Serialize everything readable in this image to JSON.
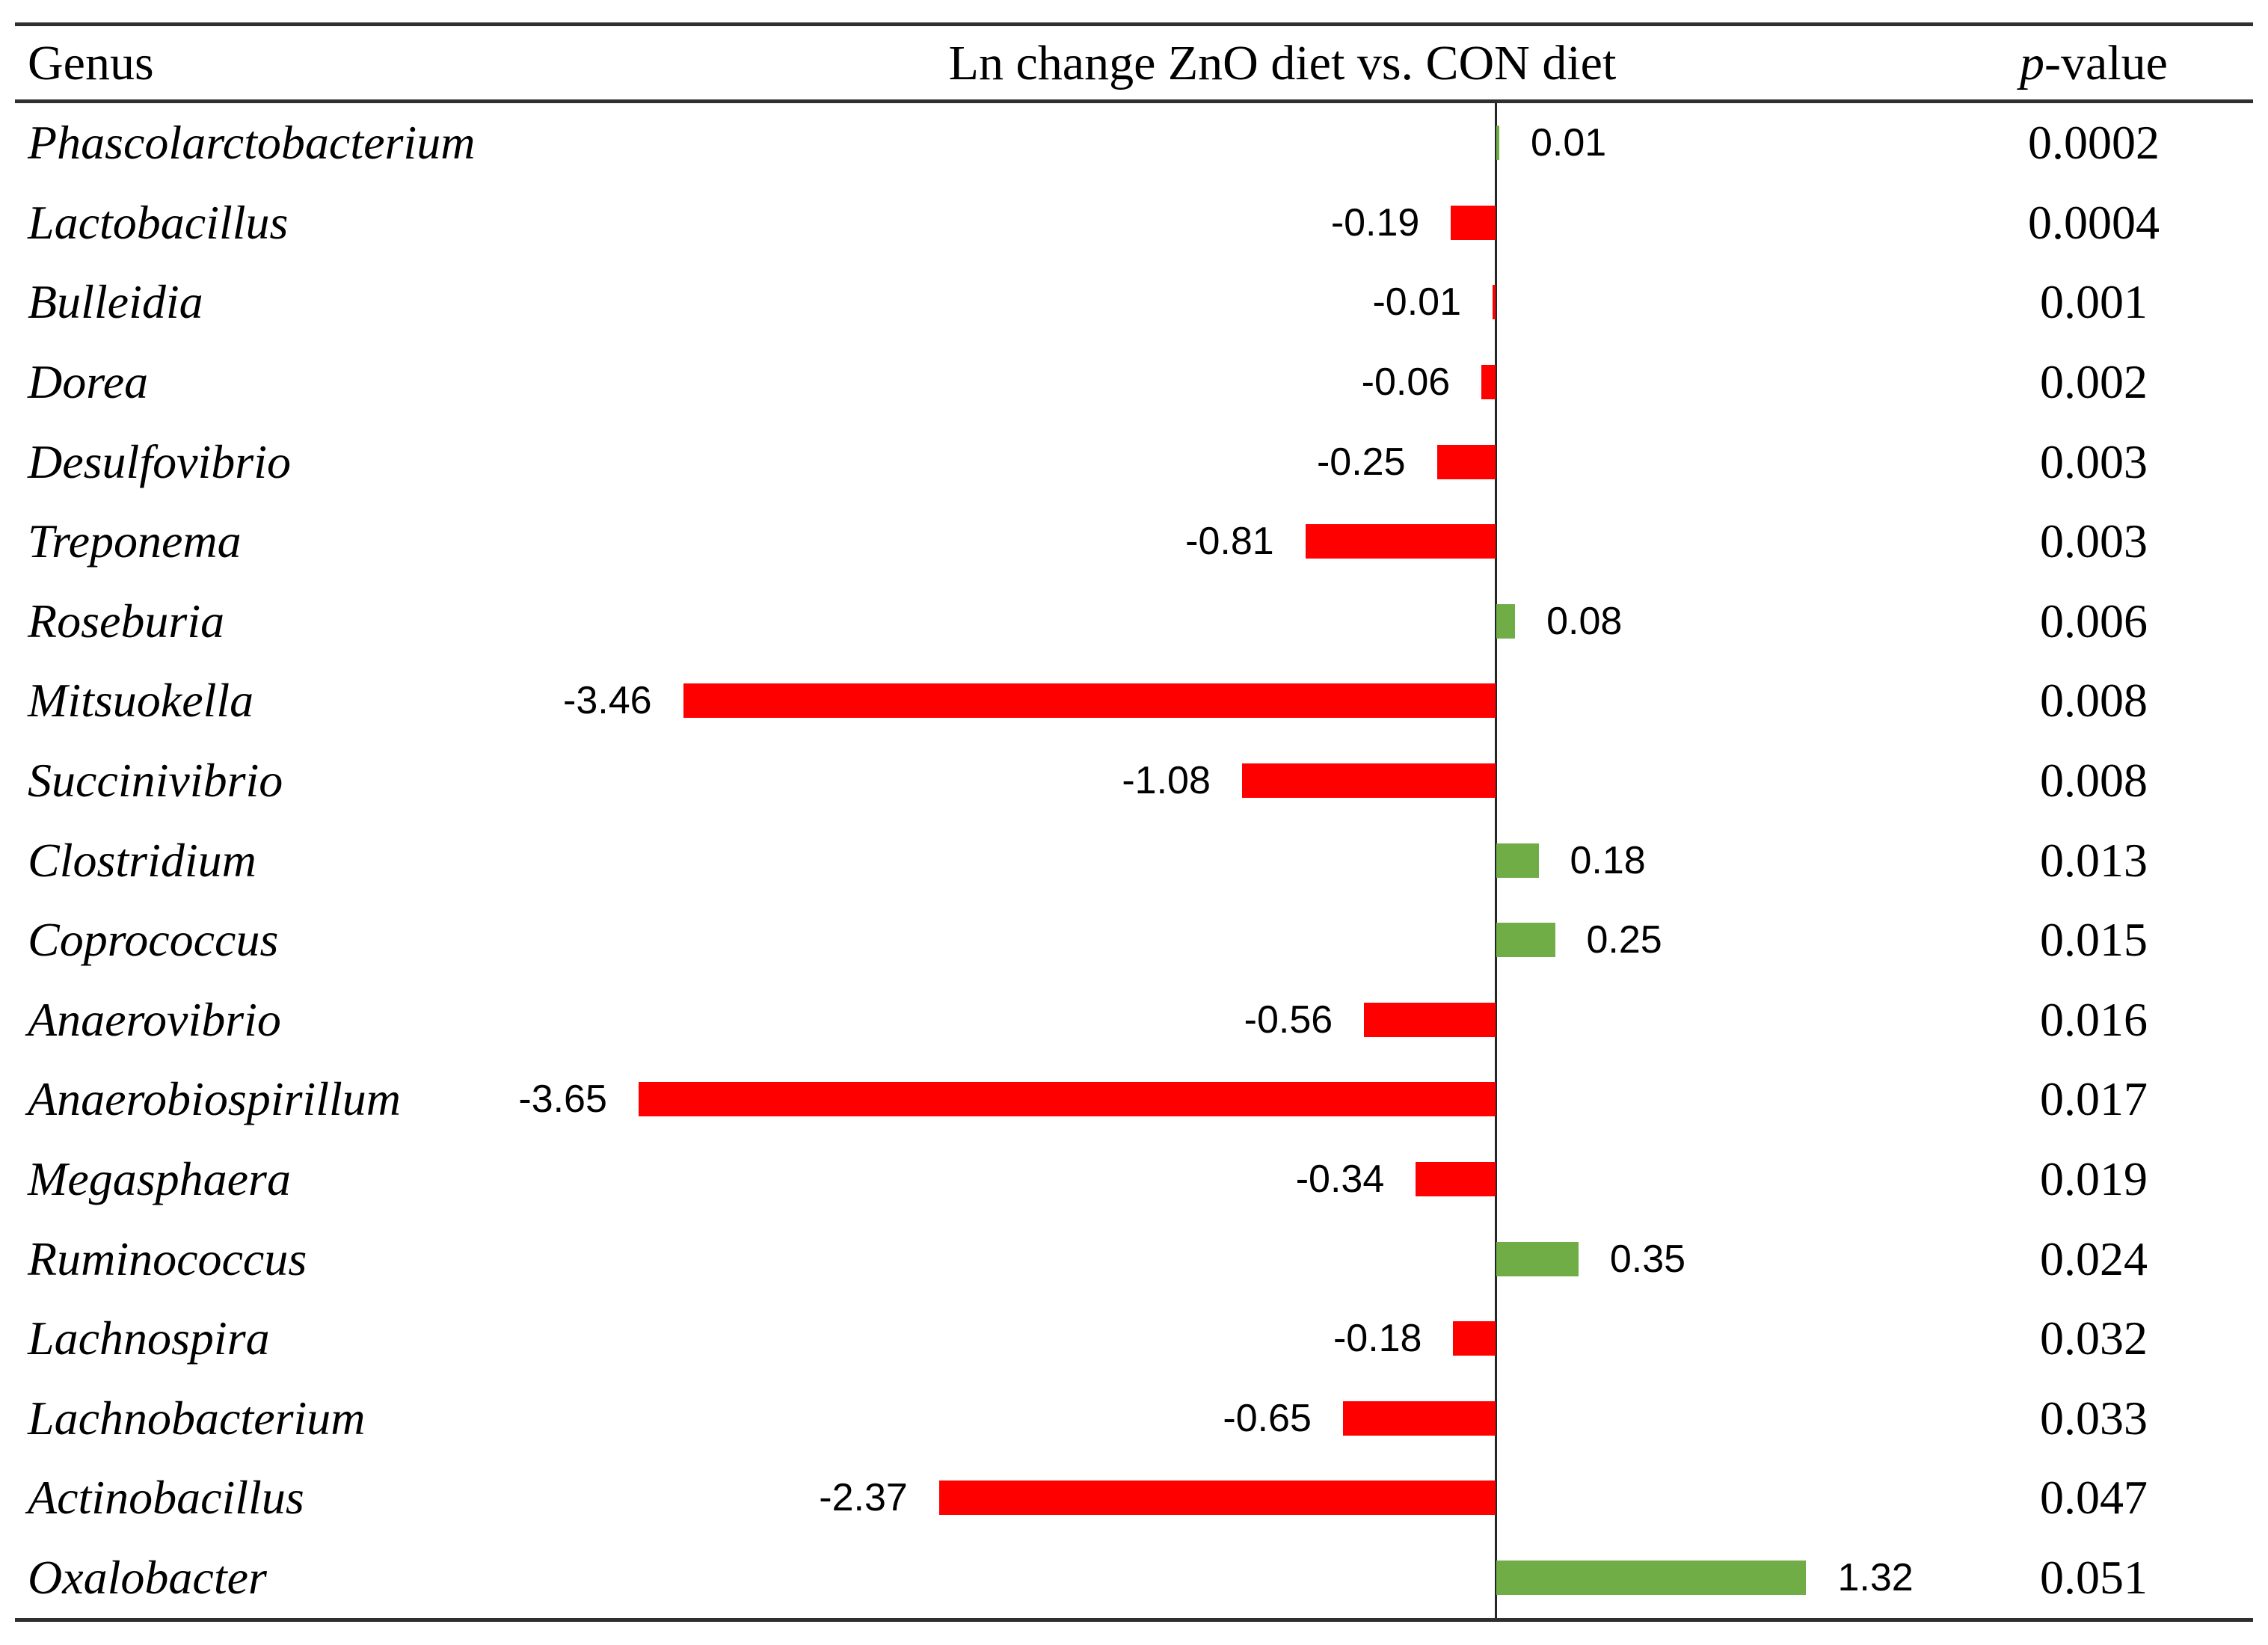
{
  "header": {
    "genus": "Genus",
    "change": "Ln change ZnO diet vs. CON diet",
    "p_italic": "p",
    "p_rest": "-value"
  },
  "chart_data": {
    "type": "bar",
    "orientation": "horizontal",
    "title": "Ln change ZnO diet vs. CON diet",
    "xlabel": "Ln change",
    "xlim": [
      -4,
      2.2
    ],
    "grid": false,
    "positive_color": "#70AD47",
    "negative_color": "#FF0000",
    "rows": [
      {
        "genus": "Phascolarctobacterium",
        "change": 0.01,
        "label": "0.01",
        "p": "0.0002"
      },
      {
        "genus": "Lactobacillus",
        "change": -0.19,
        "label": "-0.19",
        "p": "0.0004"
      },
      {
        "genus": "Bulleidia",
        "change": -0.01,
        "label": "-0.01",
        "p": "0.001"
      },
      {
        "genus": "Dorea",
        "change": -0.06,
        "label": "-0.06",
        "p": "0.002"
      },
      {
        "genus": "Desulfovibrio",
        "change": -0.25,
        "label": "-0.25",
        "p": "0.003"
      },
      {
        "genus": "Treponema",
        "change": -0.81,
        "label": "-0.81",
        "p": "0.003"
      },
      {
        "genus": "Roseburia",
        "change": 0.08,
        "label": "0.08",
        "p": "0.006"
      },
      {
        "genus": "Mitsuokella",
        "change": -3.46,
        "label": "-3.46",
        "p": "0.008"
      },
      {
        "genus": "Succinivibrio",
        "change": -1.08,
        "label": "-1.08",
        "p": "0.008"
      },
      {
        "genus": "Clostridium",
        "change": 0.18,
        "label": "0.18",
        "p": "0.013"
      },
      {
        "genus": "Coprococcus",
        "change": 0.25,
        "label": "0.25",
        "p": "0.015"
      },
      {
        "genus": "Anaerovibrio",
        "change": -0.56,
        "label": "-0.56",
        "p": "0.016"
      },
      {
        "genus": "Anaerobiospirillum",
        "change": -3.65,
        "label": "-3.65",
        "p": "0.017"
      },
      {
        "genus": "Megasphaera",
        "change": -0.34,
        "label": "-0.34",
        "p": "0.019"
      },
      {
        "genus": "Ruminococcus",
        "change": 0.35,
        "label": "0.35",
        "p": "0.024"
      },
      {
        "genus": "Lachnospira",
        "change": -0.18,
        "label": "-0.18",
        "p": "0.032"
      },
      {
        "genus": "Lachnobacterium",
        "change": -0.65,
        "label": "-0.65",
        "p": "0.033"
      },
      {
        "genus": "Actinobacillus",
        "change": -2.37,
        "label": "-2.37",
        "p": "0.047"
      },
      {
        "genus": "Oxalobacter",
        "change": 1.32,
        "label": "1.32",
        "p": "0.051"
      }
    ]
  }
}
